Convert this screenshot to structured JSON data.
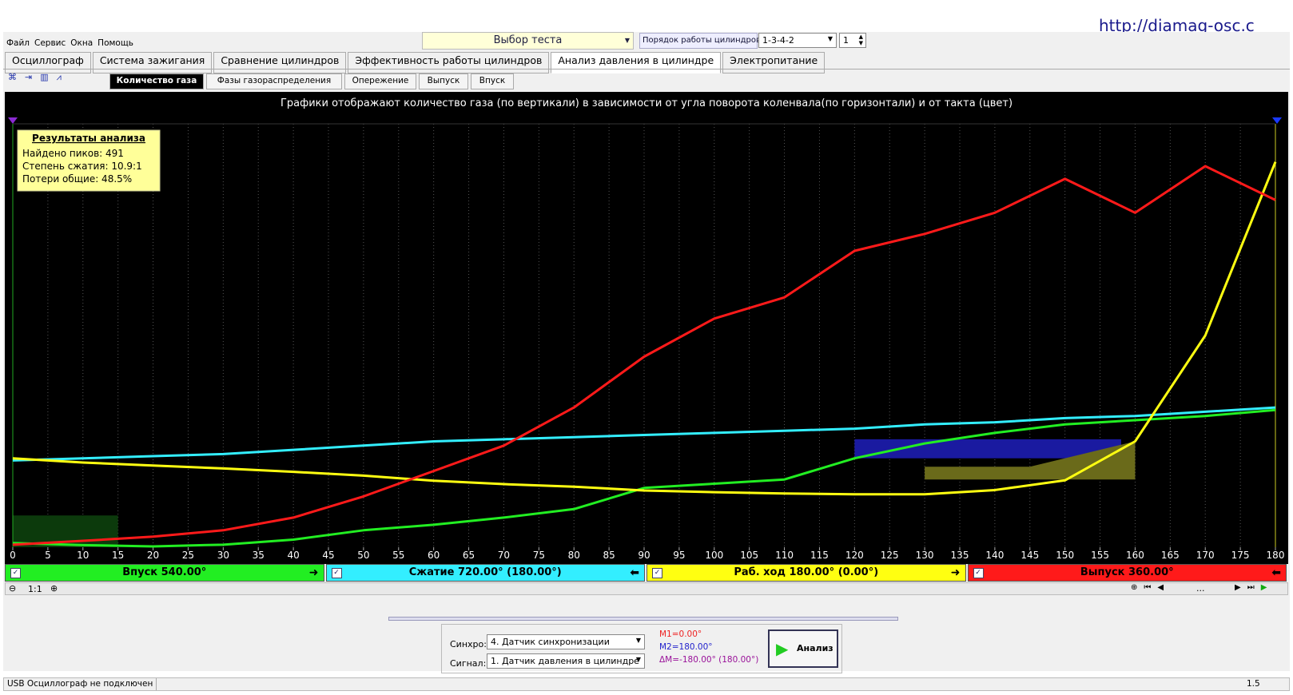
{
  "url": "http://diamag-osc.c",
  "menu": [
    "Файл",
    "Сервис",
    "Окна",
    "Помощь"
  ],
  "test_select": "Выбор теста",
  "cylinder_order_label": "Порядок работы цилиндров",
  "cylinder_order": "1-3-4-2",
  "cylinder_number": "1",
  "tabs": [
    "Осциллограф",
    "Система зажигания",
    "Сравнение цилиндров",
    "Эффективность работы цилиндров",
    "Анализ давления в цилиндре",
    "Электропитание"
  ],
  "active_tab": 4,
  "subtabs": [
    "Количество газа",
    "Фазы газораспределения",
    "Опережение",
    "Выпуск",
    "Впуск"
  ],
  "active_subtab": 0,
  "results": {
    "title": "Результаты анализа",
    "lines": [
      "Найдено пиков: 491",
      "Степень сжатия: 10.9:1",
      "Потери общие: 48.5%"
    ]
  },
  "chart_data": {
    "type": "line",
    "title": "Графики отображают количество газа (по вертикали) в зависимости от угла поворота коленвала(по горизонтали) и от такта (цвет)",
    "x": [
      0,
      10,
      20,
      30,
      40,
      50,
      60,
      70,
      80,
      90,
      100,
      110,
      120,
      130,
      140,
      150,
      160,
      170,
      180
    ],
    "xlim": [
      0,
      180
    ],
    "xticks": [
      0,
      5,
      10,
      15,
      20,
      25,
      30,
      35,
      40,
      45,
      50,
      55,
      60,
      65,
      70,
      75,
      80,
      85,
      90,
      95,
      100,
      105,
      110,
      115,
      120,
      125,
      130,
      135,
      140,
      145,
      150,
      155,
      160,
      165,
      170,
      175,
      180
    ],
    "ylim": [
      0,
      100
    ],
    "grid": true,
    "series": [
      {
        "name": "Впуск 540.00°",
        "color": "#22ee22",
        "values": [
          1,
          0.5,
          0.2,
          0.6,
          1.8,
          4,
          5.3,
          7,
          9,
          14,
          15,
          16,
          21,
          24.5,
          27,
          29,
          30,
          31,
          32.4
        ]
      },
      {
        "name": "Сжатие 720.00° (180.00°)",
        "color": "#33eeff",
        "values": [
          20.5,
          21,
          21.5,
          22,
          23,
          24,
          25,
          25.5,
          26,
          26.5,
          27,
          27.5,
          28,
          29,
          29.5,
          30.5,
          31,
          32,
          33
        ]
      },
      {
        "name": "Раб. ход 180.00° (0.00°)",
        "color": "#ffff11",
        "values": [
          21,
          20,
          19.3,
          18.6,
          17.8,
          16.9,
          15.7,
          14.9,
          14.3,
          13.4,
          13,
          12.7,
          12.5,
          12.5,
          13.5,
          15.8,
          25,
          50,
          91
        ]
      },
      {
        "name": "Выпуск 360.00°",
        "color": "#ff1a1a",
        "values": [
          0.6,
          1.5,
          2.5,
          4,
          7,
          12,
          18,
          24,
          33,
          45,
          54,
          59,
          70,
          74,
          79,
          87,
          79,
          90,
          82
        ]
      }
    ]
  },
  "zoom": "1:1",
  "ellipsis": "...",
  "sync_label": "Синхро:",
  "sync_value": "4. Датчик синхронизации",
  "signal_label": "Сигнал:",
  "signal_value": "1. Датчик давления в цилиндре",
  "m1": "M1=0.00°",
  "m2": "M2=180.00°",
  "dm": "ΔM=-180.00° (180.00°)",
  "analyze": "Анализ",
  "status": "USB Осциллограф не подключен",
  "version": "1.5"
}
